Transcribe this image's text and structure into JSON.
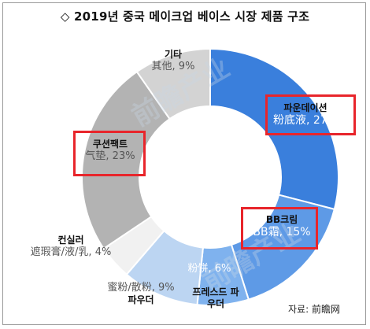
{
  "title": "◇ 2019년 중국 메이크업 베이스 시장 제품 구조",
  "source": "자료: 前瞻网",
  "chart_data": {
    "type": "pie",
    "donut": true,
    "title": "◇ 2019년 중국 메이크업 베이스 시장 제품 구조",
    "slices": [
      {
        "ko": "파운데이션",
        "zh": "粉底液, 27%",
        "value": 27,
        "color": "#3a7fdc"
      },
      {
        "ko": "BB크림",
        "zh": "BB霜, 15%",
        "value": 15,
        "color": "#5e9ae6"
      },
      {
        "ko": "프레스드 파우더",
        "zh": "粉饼, 6%",
        "value": 6,
        "color": "#7fb2ee"
      },
      {
        "ko": "파우더",
        "zh": "蜜粉/散粉, 9%",
        "value": 9,
        "color": "#bcd5f2"
      },
      {
        "ko": "컨실러",
        "zh": "遮瑕膏/液/乳, 4%",
        "value": 4,
        "color": "#f1f1f1"
      },
      {
        "ko": "쿠션팩트",
        "zh": "气垫, 23%",
        "value": 23,
        "color": "#b3b3b3"
      },
      {
        "ko": "기타",
        "zh": "其他, 9%",
        "value": 9,
        "color": "#d3d3d3"
      }
    ],
    "highlighted": [
      "파운데이션",
      "BB크림",
      "쿠션팩트"
    ]
  }
}
